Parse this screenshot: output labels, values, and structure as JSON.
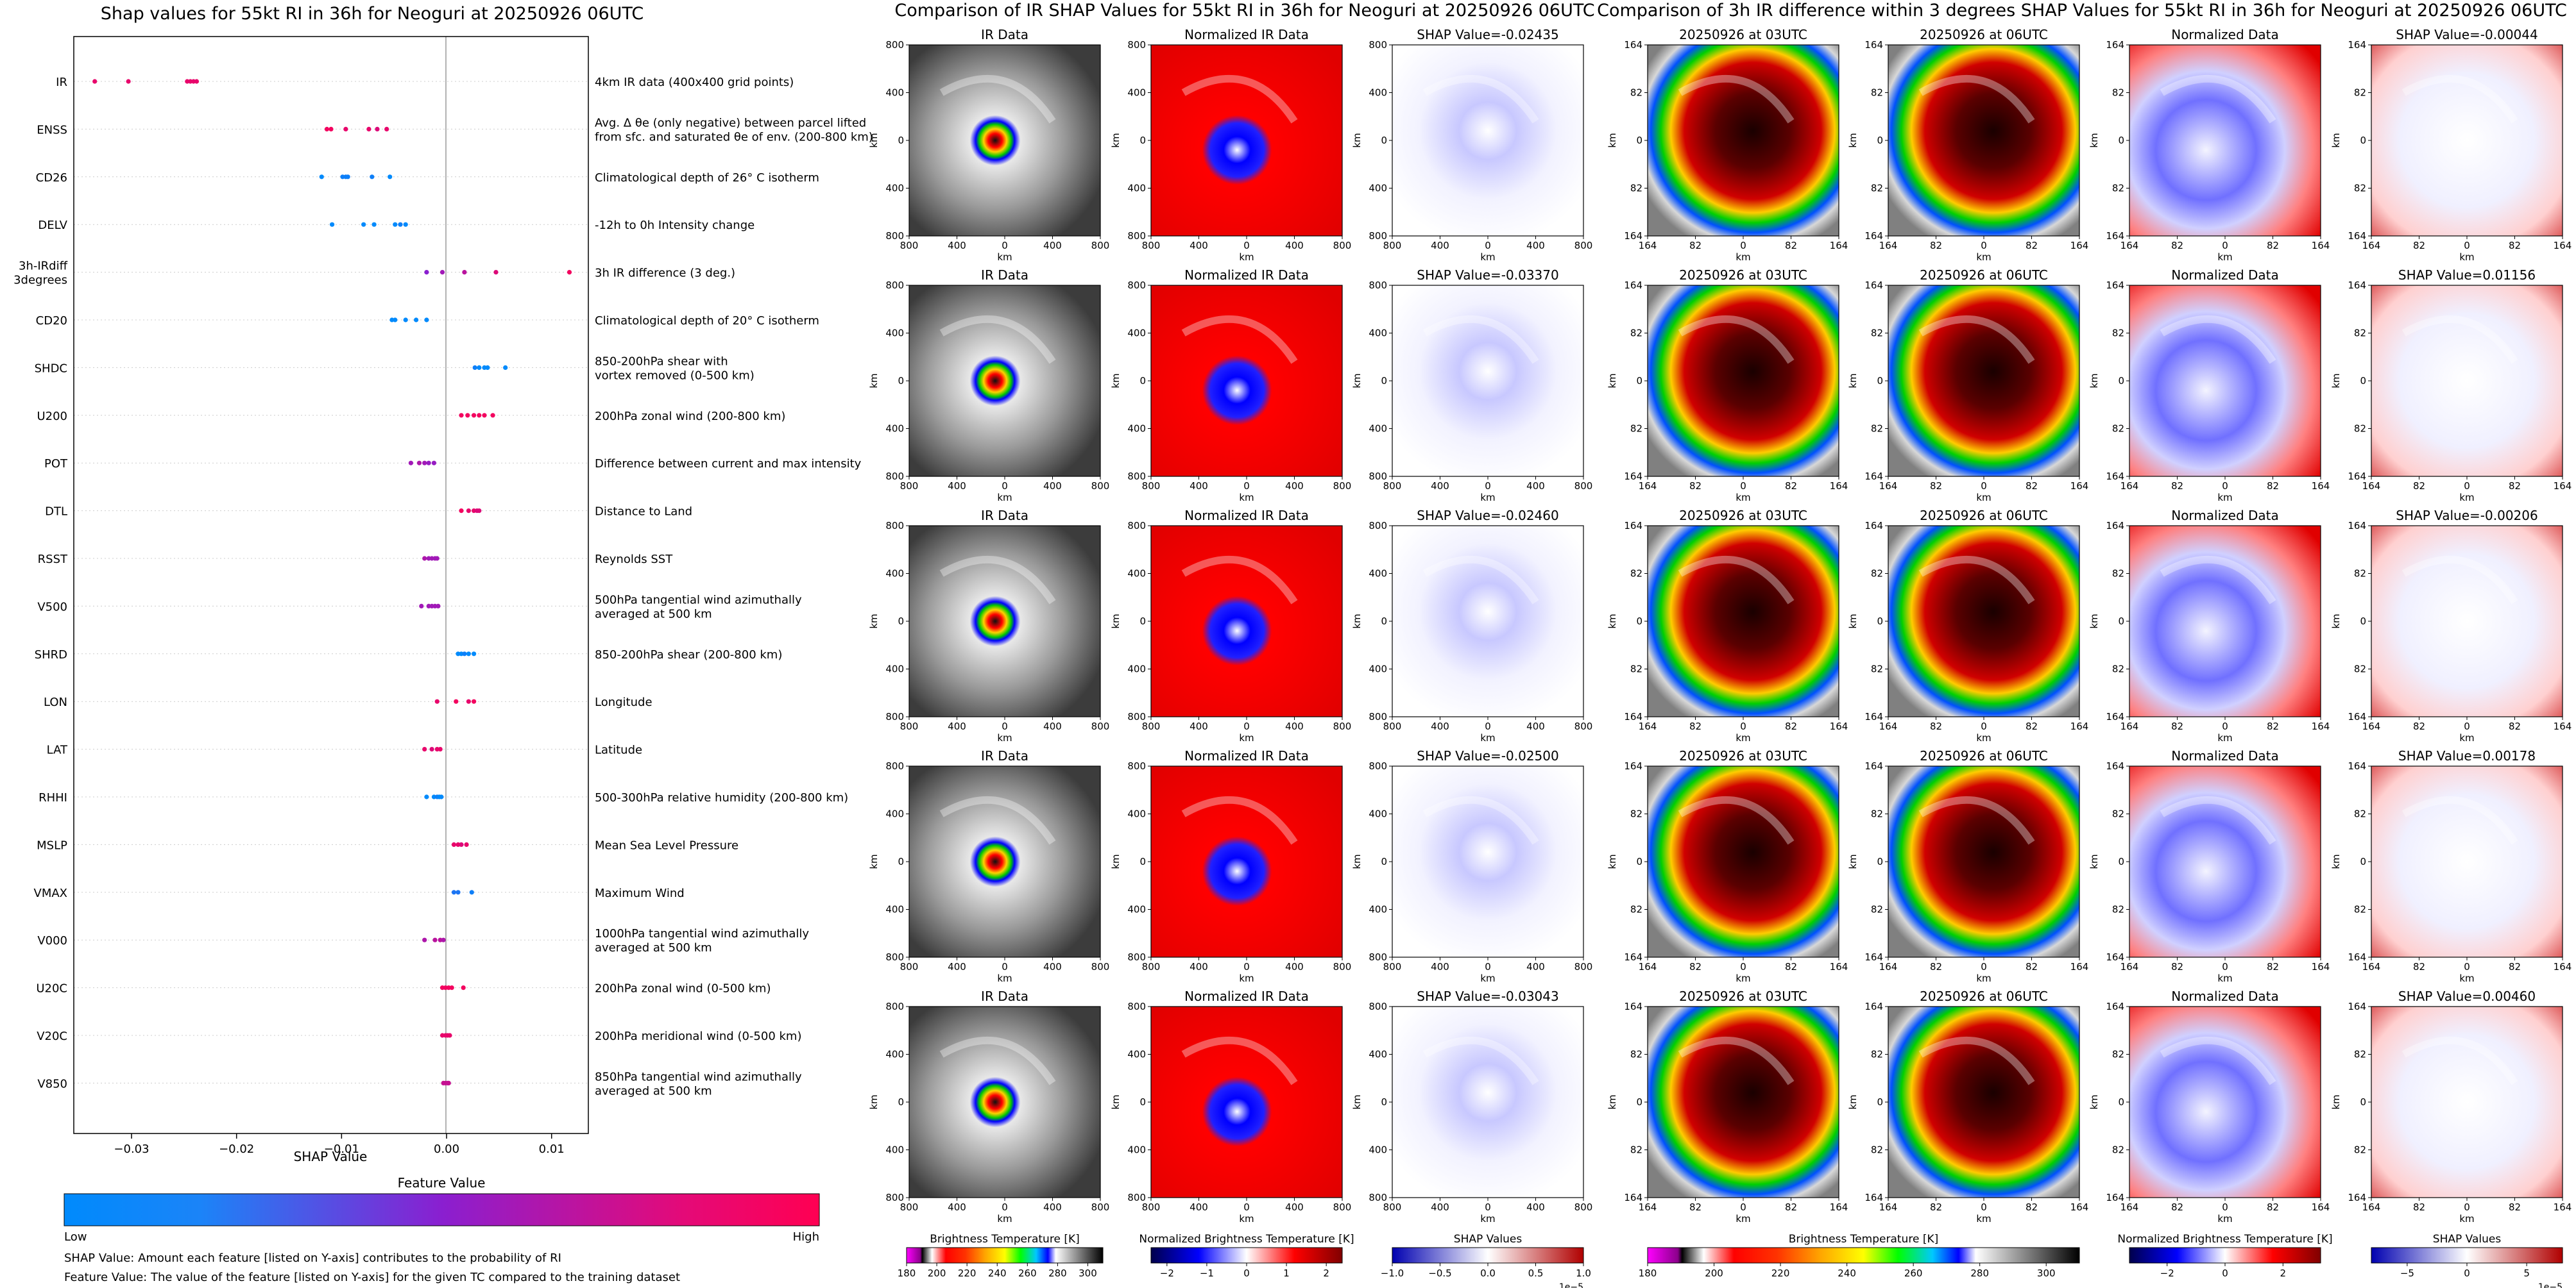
{
  "colors": {
    "feature_low": "#008afc",
    "feature_mid": "#8a1fd0",
    "feature_high": "#ff0052",
    "ir_low_saturated": "#ff00ff",
    "shap_negative": "#0000cc",
    "shap_positive": "#cc0000"
  },
  "chart_data": [
    {
      "type": "scatter",
      "title": "Shap values for 55kt RI in 36h for Neoguri at 20250926 06UTC",
      "xlabel": "SHAP Value",
      "ylabel": "",
      "xlim": [
        -0.0355,
        0.0135
      ],
      "xticks": [
        -0.03,
        -0.02,
        -0.01,
        0.0,
        0.01
      ],
      "xtick_labels": [
        "−0.03",
        "−0.02",
        "−0.01",
        "0.00",
        "0.01"
      ],
      "features": [
        {
          "name": "IR",
          "desc": [
            "4km IR data (400x400 grid points)"
          ],
          "points": [
            [
              -0.0335,
              0.9
            ],
            [
              -0.0303,
              0.9
            ],
            [
              -0.0247,
              0.9
            ],
            [
              -0.0244,
              0.9
            ],
            [
              -0.0241,
              0.9
            ],
            [
              -0.0238,
              0.9
            ]
          ]
        },
        {
          "name": "ENSS",
          "desc": [
            "Avg. Δ θe (only negative) between parcel lifted",
            "from sfc. and saturated θe of env. (200-800 km)"
          ],
          "points": [
            [
              -0.0114,
              0.95
            ],
            [
              -0.011,
              0.95
            ],
            [
              -0.0096,
              0.9
            ],
            [
              -0.0074,
              0.9
            ],
            [
              -0.0066,
              0.85
            ],
            [
              -0.0057,
              0.9
            ]
          ]
        },
        {
          "name": "CD26",
          "desc": [
            "Climatological depth of 26° C isotherm"
          ],
          "points": [
            [
              -0.0119,
              0.0
            ],
            [
              -0.0099,
              0.05
            ],
            [
              -0.0096,
              0.05
            ],
            [
              -0.0094,
              0.05
            ],
            [
              -0.0071,
              0.05
            ],
            [
              -0.0054,
              0.0
            ]
          ]
        },
        {
          "name": "DELV",
          "desc": [
            "-12h to 0h Intensity change"
          ],
          "points": [
            [
              -0.0109,
              0.0
            ],
            [
              -0.0079,
              0.0
            ],
            [
              -0.0069,
              0.0
            ],
            [
              -0.0049,
              0.0
            ],
            [
              -0.0044,
              0.05
            ],
            [
              -0.0039,
              0.0
            ]
          ]
        },
        {
          "name": "3h-IRdiff 3degrees",
          "desc": [
            "3h IR difference (3 deg.)"
          ],
          "points": [
            [
              -0.0019,
              0.5
            ],
            [
              -0.0004,
              0.6
            ],
            [
              0.0017,
              0.7
            ],
            [
              0.0047,
              0.85
            ],
            [
              0.0117,
              0.95
            ]
          ]
        },
        {
          "name": "CD20",
          "desc": [
            "Climatological depth of 20° C isotherm"
          ],
          "points": [
            [
              -0.0052,
              0.0
            ],
            [
              -0.0049,
              0.0
            ],
            [
              -0.0039,
              0.0
            ],
            [
              -0.0029,
              0.0
            ],
            [
              -0.0019,
              0.0
            ]
          ]
        },
        {
          "name": "SHDC",
          "desc": [
            "850-200hPa shear with",
            "vortex removed (0-500 km)"
          ],
          "points": [
            [
              0.0027,
              0.05
            ],
            [
              0.0031,
              0.0
            ],
            [
              0.0036,
              0.0
            ],
            [
              0.0039,
              0.0
            ],
            [
              0.0056,
              0.0
            ]
          ]
        },
        {
          "name": "U200",
          "desc": [
            "200hPa zonal wind (200-800 km)"
          ],
          "points": [
            [
              0.0014,
              0.95
            ],
            [
              0.002,
              0.95
            ],
            [
              0.0026,
              0.95
            ],
            [
              0.0031,
              0.95
            ],
            [
              0.0036,
              0.95
            ],
            [
              0.0044,
              0.95
            ]
          ]
        },
        {
          "name": "POT",
          "desc": [
            "Difference between current and max intensity"
          ],
          "points": [
            [
              -0.0034,
              0.6
            ],
            [
              -0.0026,
              0.65
            ],
            [
              -0.0021,
              0.6
            ],
            [
              -0.0017,
              0.55
            ],
            [
              -0.0012,
              0.55
            ]
          ]
        },
        {
          "name": "DTL",
          "desc": [
            "Distance to Land"
          ],
          "points": [
            [
              0.0014,
              0.95
            ],
            [
              0.0021,
              0.9
            ],
            [
              0.0026,
              0.9
            ],
            [
              0.0029,
              0.85
            ],
            [
              0.0031,
              0.85
            ]
          ]
        },
        {
          "name": "RSST",
          "desc": [
            "Reynolds SST"
          ],
          "points": [
            [
              -0.0021,
              0.65
            ],
            [
              -0.0017,
              0.6
            ],
            [
              -0.0014,
              0.6
            ],
            [
              -0.0011,
              0.6
            ],
            [
              -0.0009,
              0.6
            ]
          ]
        },
        {
          "name": "V500",
          "desc": [
            "500hPa tangential wind azimuthally",
            "averaged at 500 km"
          ],
          "points": [
            [
              -0.0024,
              0.6
            ],
            [
              -0.0017,
              0.6
            ],
            [
              -0.0014,
              0.6
            ],
            [
              -0.0011,
              0.6
            ],
            [
              -0.0008,
              0.6
            ]
          ]
        },
        {
          "name": "SHRD",
          "desc": [
            "850-200hPa shear (200-800 km)"
          ],
          "points": [
            [
              0.0011,
              0.0
            ],
            [
              0.0014,
              0.0
            ],
            [
              0.0017,
              0.05
            ],
            [
              0.0021,
              0.0
            ],
            [
              0.0026,
              0.0
            ]
          ]
        },
        {
          "name": "LON",
          "desc": [
            "Longitude"
          ],
          "points": [
            [
              -0.0009,
              0.9
            ],
            [
              0.0009,
              0.95
            ],
            [
              0.0021,
              0.9
            ],
            [
              0.0026,
              0.95
            ]
          ]
        },
        {
          "name": "LAT",
          "desc": [
            "Latitude"
          ],
          "points": [
            [
              -0.0021,
              0.9
            ],
            [
              -0.0014,
              0.85
            ],
            [
              -0.0009,
              0.9
            ],
            [
              -0.0006,
              0.9
            ]
          ]
        },
        {
          "name": "RHHI",
          "desc": [
            "500-300hPa relative humidity (200-800 km)"
          ],
          "points": [
            [
              -0.0019,
              0.0
            ],
            [
              -0.0012,
              0.0
            ],
            [
              -0.0009,
              0.05
            ],
            [
              -0.0007,
              0.0
            ],
            [
              -0.0005,
              0.0
            ]
          ]
        },
        {
          "name": "MSLP",
          "desc": [
            "Mean Sea Level Pressure"
          ],
          "points": [
            [
              0.0007,
              0.9
            ],
            [
              0.0011,
              0.9
            ],
            [
              0.0014,
              0.85
            ],
            [
              0.0019,
              0.9
            ]
          ]
        },
        {
          "name": "VMAX",
          "desc": [
            "Maximum Wind"
          ],
          "points": [
            [
              0.0007,
              0.1
            ],
            [
              0.0011,
              0.1
            ],
            [
              0.0024,
              0.05
            ]
          ]
        },
        {
          "name": "V000",
          "desc": [
            "1000hPa tangential wind azimuthally",
            "averaged at 500 km"
          ],
          "points": [
            [
              -0.0021,
              0.65
            ],
            [
              -0.0011,
              0.7
            ],
            [
              -0.0006,
              0.7
            ],
            [
              -0.0003,
              0.65
            ]
          ]
        },
        {
          "name": "U20C",
          "desc": [
            "200hPa zonal wind (0-500 km)"
          ],
          "points": [
            [
              -0.0004,
              0.95
            ],
            [
              -0.0001,
              0.95
            ],
            [
              0.0002,
              0.95
            ],
            [
              0.0005,
              0.95
            ],
            [
              0.0016,
              0.95
            ]
          ]
        },
        {
          "name": "V20C",
          "desc": [
            "200hPa meridional wind (0-500 km)"
          ],
          "points": [
            [
              -0.0004,
              0.9
            ],
            [
              -0.0001,
              0.9
            ],
            [
              0.0001,
              0.9
            ],
            [
              0.0003,
              0.9
            ]
          ]
        },
        {
          "name": "V850",
          "desc": [
            "850hPa tangential wind azimuthally",
            "averaged at 500 km"
          ],
          "points": [
            [
              -0.0003,
              0.75
            ],
            [
              -0.0001,
              0.75
            ],
            [
              0.0001,
              0.75
            ],
            [
              0.0002,
              0.75
            ]
          ]
        }
      ],
      "colorbar_label": "Feature Value",
      "colorbar_low": "Low",
      "colorbar_high": "High",
      "footnotes": [
        "SHAP Value: Amount each feature [listed on Y-axis] contributes to the probability of RI",
        "Feature Value: The value of the feature [listed on Y-axis] for the given TC compared to the training dataset"
      ]
    },
    {
      "type": "image_grid",
      "title": "Comparison of IR SHAP Values for 55kt RI in 36h for Neoguri at 20250926 06UTC",
      "column_titles": [
        "IR Data",
        "Normalized IR Data"
      ],
      "shap_values": [
        "-0.02435",
        "-0.03370",
        "-0.02460",
        "-0.02500",
        "-0.03043"
      ],
      "shap_prefix": "SHAP Value=",
      "axis_label": "km",
      "ticks": [
        "800",
        "400",
        "0",
        "400",
        "800"
      ],
      "colorbars": [
        {
          "label": "Brightness Temperature [K]",
          "ticks": [
            "180",
            "200",
            "220",
            "240",
            "260",
            "280",
            "300"
          ],
          "range": [
            180,
            310
          ]
        },
        {
          "label": "Normalized Brightness Temperature [K]",
          "ticks": [
            "−2",
            "−1",
            "0",
            "1",
            "2"
          ],
          "range": [
            -2.4,
            2.4
          ]
        },
        {
          "label": "SHAP Values",
          "ticks": [
            "−1.0",
            "−0.5",
            "0.0",
            "0.5",
            "1.0"
          ],
          "range": [
            -1.0,
            1.0
          ],
          "exponent": "1e−5"
        }
      ]
    },
    {
      "type": "image_grid",
      "title": "Comparison of 3h IR difference within 3 degrees SHAP Values for 55kt RI in 36h for Neoguri at 20250926 06UTC",
      "column_titles": [
        "20250926 at 03UTC",
        "20250926 at 06UTC",
        "Normalized Data"
      ],
      "shap_values": [
        "-0.00044",
        "0.01156",
        "-0.00206",
        "0.00178",
        "0.00460"
      ],
      "shap_prefix": "SHAP Value=",
      "axis_label": "km",
      "ticks": [
        "164",
        "82",
        "0",
        "82",
        "164"
      ],
      "colorbars": [
        {
          "label": "Brightness Temperature [K]",
          "ticks": [
            "180",
            "200",
            "220",
            "240",
            "260",
            "280",
            "300"
          ],
          "range": [
            180,
            310
          ]
        },
        {
          "label": "Normalized Brightness Temperature [K]",
          "ticks": [
            "−2",
            "0",
            "2"
          ],
          "range": [
            -3.3,
            3.3
          ]
        },
        {
          "label": "SHAP Values",
          "ticks": [
            "−5",
            "0",
            "5"
          ],
          "range": [
            -8,
            8
          ],
          "exponent": "1e−5"
        }
      ]
    }
  ]
}
